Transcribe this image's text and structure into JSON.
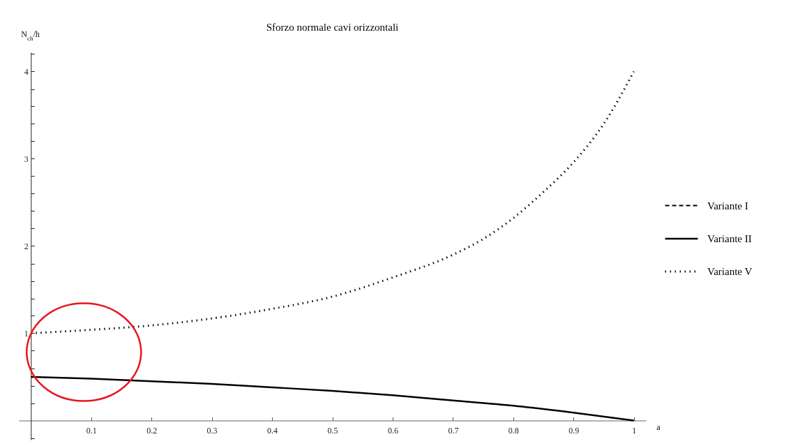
{
  "chart_data": {
    "type": "line",
    "title": "Sforzo normale cavi orizzontali",
    "xlabel": "a",
    "ylabel": "N$_{ch}$/h",
    "x": [
      0,
      0.1,
      0.2,
      0.3,
      0.4,
      0.5,
      0.6,
      0.7,
      0.8,
      0.9,
      1
    ],
    "series": [
      {
        "name": "Variante I",
        "color": "#000000",
        "line_style": "dashed",
        "values": [
          null,
          null,
          null,
          null,
          null,
          null,
          null,
          null,
          null,
          null,
          null
        ]
      },
      {
        "name": "Variante II",
        "color": "#000000",
        "line_style": "solid",
        "values": [
          0.5,
          0.48,
          0.45,
          0.42,
          0.38,
          0.34,
          0.29,
          0.23,
          0.17,
          0.09,
          0
        ]
      },
      {
        "name": "Variante V",
        "color": "#000000",
        "line_style": "dotted",
        "x": [
          0,
          0.1,
          0.2,
          0.3,
          0.4,
          0.5,
          0.6,
          0.7,
          0.75,
          0.8,
          0.85,
          0.9,
          0.95,
          1
        ],
        "values": [
          1,
          1.04,
          1.09,
          1.17,
          1.28,
          1.42,
          1.64,
          1.9,
          2.08,
          2.32,
          2.62,
          2.96,
          3.4,
          4
        ]
      }
    ],
    "xlim": [
      -0.02,
      1.02
    ],
    "ylim": [
      -0.22,
      4.22
    ],
    "xticks": [
      0.1,
      0.2,
      0.3,
      0.4,
      0.5,
      0.6,
      0.7,
      0.8,
      0.9,
      1
    ],
    "yticks": [
      {
        "value": -0.2,
        "label": null
      },
      {
        "value": 0.2,
        "label": null
      },
      {
        "value": 0.4,
        "label": null
      },
      {
        "value": 0.6,
        "label": null
      },
      {
        "value": 0.8,
        "label": null
      },
      1,
      {
        "value": 1.2,
        "label": null
      },
      {
        "value": 1.4,
        "label": null
      },
      {
        "value": 1.6,
        "label": null
      },
      {
        "value": 1.8,
        "label": null
      },
      2,
      {
        "value": 2.2,
        "label": null
      },
      {
        "value": 2.4,
        "label": null
      },
      {
        "value": 2.6,
        "label": null
      },
      {
        "value": 2.8,
        "label": null
      },
      3,
      {
        "value": 3.2,
        "label": null
      },
      {
        "value": 3.4,
        "label": null
      },
      {
        "value": 3.6,
        "label": null
      },
      {
        "value": 3.8,
        "label": null
      },
      4,
      {
        "value": 4.2,
        "label": null
      }
    ],
    "grid": false,
    "legend": "right",
    "marker": "none"
  }
}
